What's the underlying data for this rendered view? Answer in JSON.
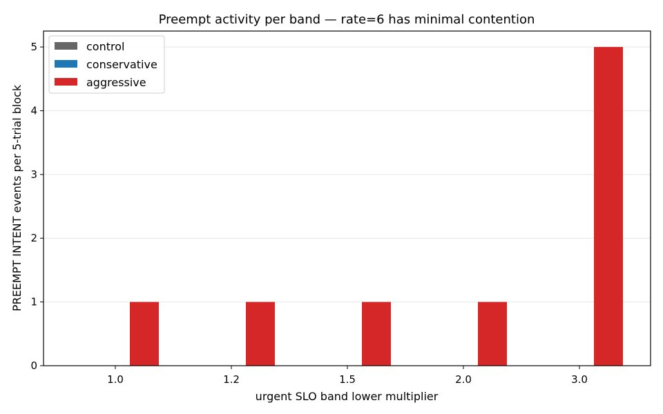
{
  "chart_data": {
    "type": "bar",
    "title": "Preempt activity per band — rate=6 has minimal contention",
    "xlabel": "urgent SLO band lower multiplier",
    "ylabel": "PREEMPT INTENT events per 5-trial block",
    "categories": [
      "1.0",
      "1.2",
      "1.5",
      "2.0",
      "3.0"
    ],
    "series": [
      {
        "name": "control",
        "color": "#666666",
        "values": [
          0,
          0,
          0,
          0,
          0
        ]
      },
      {
        "name": "conservative",
        "color": "#1f77b4",
        "values": [
          0,
          0,
          0,
          0,
          0
        ]
      },
      {
        "name": "aggressive",
        "color": "#d62728",
        "values": [
          1,
          1,
          1,
          1,
          5
        ]
      }
    ],
    "yticks": [
      "0",
      "1",
      "2",
      "3",
      "4",
      "5"
    ],
    "ylim": [
      0,
      5.25
    ],
    "grid": "horizontal",
    "legend": "top-left"
  }
}
